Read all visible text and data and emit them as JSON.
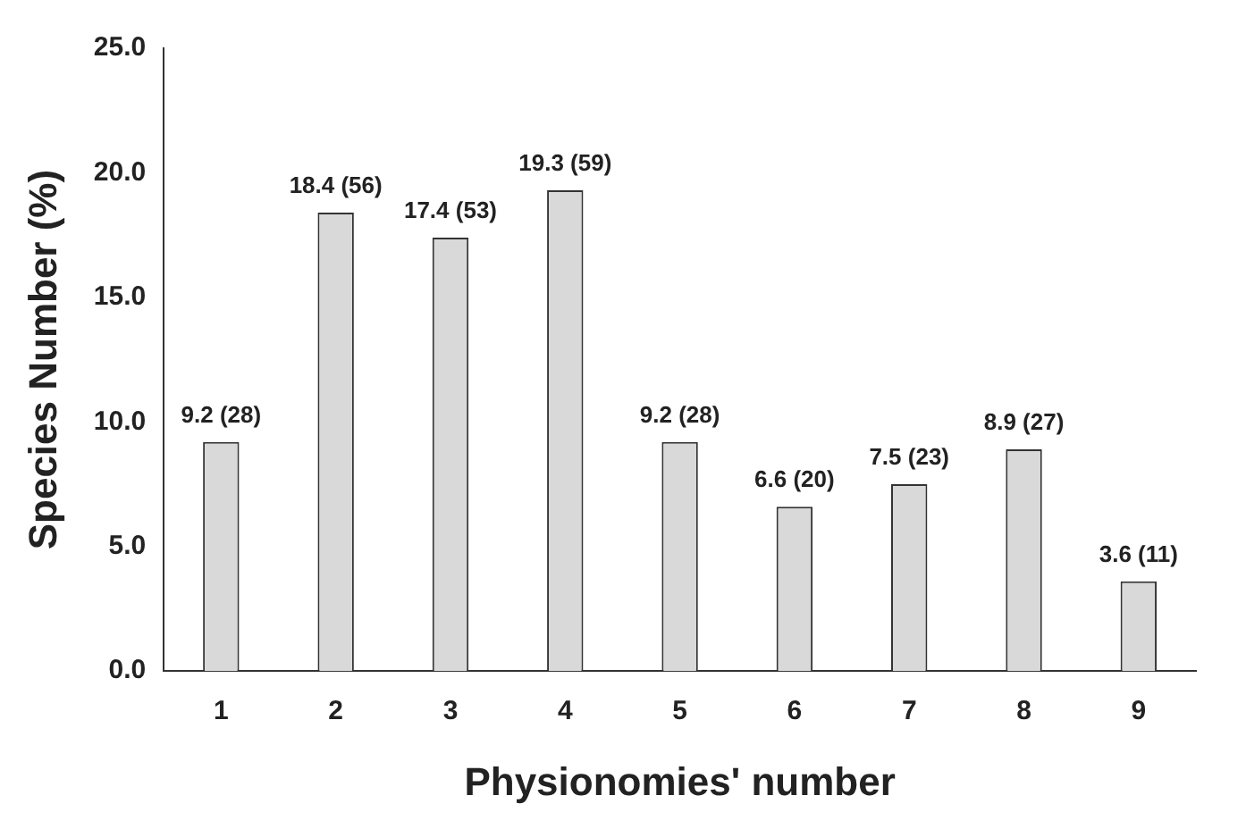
{
  "chart_data": {
    "type": "bar",
    "xlabel": "Physionomies' number",
    "ylabel": "Species Number (%)",
    "categories": [
      "1",
      "2",
      "3",
      "4",
      "5",
      "6",
      "7",
      "8",
      "9"
    ],
    "values": [
      9.2,
      18.4,
      17.4,
      19.3,
      9.2,
      6.6,
      7.5,
      8.9,
      3.6
    ],
    "value_labels": [
      "9.2 (28)",
      "18.4 (56)",
      "17.4 (53)",
      "19.3 (59)",
      "9.2 (28)",
      "6.6 (20)",
      "7.5 (23)",
      "8.9 (27)",
      "3.6 (11)"
    ],
    "color": "#d9d9d9",
    "ylim": [
      0,
      25
    ],
    "yticks": [
      {
        "value": 0,
        "label": "0.0"
      },
      {
        "value": 5,
        "label": "5.0"
      },
      {
        "value": 10,
        "label": "10.0"
      },
      {
        "value": 15,
        "label": "15.0"
      },
      {
        "value": 20,
        "label": "20.0"
      },
      {
        "value": 25,
        "label": "25.0"
      }
    ],
    "grid": false,
    "legend": false
  }
}
